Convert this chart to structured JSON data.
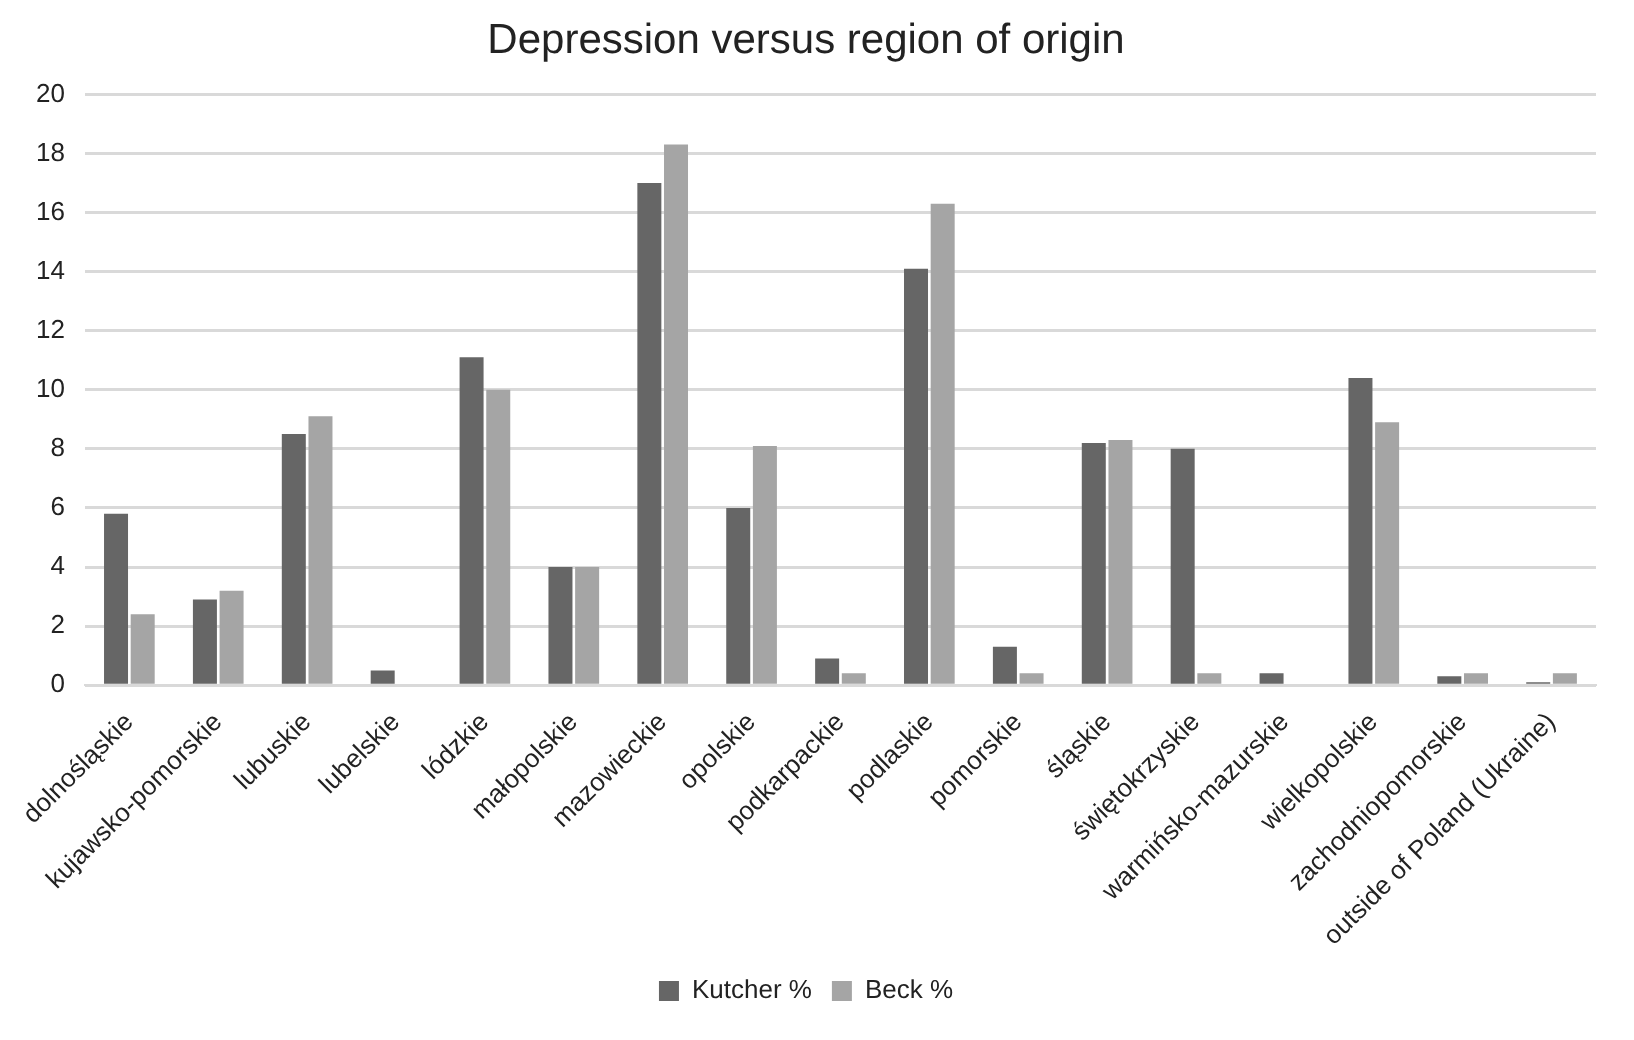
{
  "chart_data": {
    "type": "bar",
    "title": "Depression versus region of origin",
    "categories": [
      "dolnośląskie",
      "kujawsko-pomorskie",
      "lubuskie",
      "lubelskie",
      "lódzkie",
      "małopolskie",
      "mazowieckie",
      "opolskie",
      "podkarpackie",
      "podlaskie",
      "pomorskie",
      "śląskie",
      "świętokrzyskie",
      "warmińsko-mazurskie",
      "wielkopolskie",
      "zachodniopomorskie",
      "outside of Poland (Ukraine)"
    ],
    "series": [
      {
        "name": "Kutcher %",
        "color": "#666666",
        "values": [
          5.8,
          2.9,
          8.5,
          0.5,
          11.1,
          4,
          17,
          6,
          0.9,
          14.1,
          1.3,
          8.2,
          8,
          0.4,
          10.4,
          0.3,
          0.1
        ]
      },
      {
        "name": "Beck %",
        "color": "#a5a5a5",
        "values": [
          2.4,
          3.2,
          9.1,
          0,
          10,
          4,
          18.3,
          8.1,
          0.4,
          16.3,
          0.4,
          8.3,
          0.4,
          0,
          8.9,
          0.4,
          0.4
        ]
      }
    ],
    "ylim": [
      0,
      20
    ],
    "yticks": [
      0,
      2,
      4,
      6,
      8,
      10,
      12,
      14,
      16,
      18,
      20
    ],
    "grid": "y",
    "legend": "bottom"
  }
}
